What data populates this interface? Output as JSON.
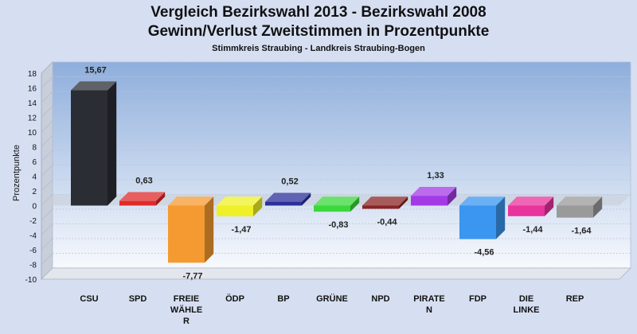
{
  "header": {
    "title_line1": "Vergleich Bezirkswahl 2013 - Bezirkswahl 2008",
    "title_line2": "Gewinn/Verlust Zweitstimmen in Prozentpunkte",
    "subtitle": "Stimmkreis Straubing - Landkreis Straubing-Bogen"
  },
  "chart_data": {
    "type": "bar",
    "title": "Vergleich Bezirkswahl 2013 - Bezirkswahl 2008",
    "subtitle": "Gewinn/Verlust Zweitstimmen in Prozentpunkte",
    "ylabel": "Prozentpunkte",
    "xlabel": "",
    "ylim": [
      -10,
      18
    ],
    "yticks": [
      18,
      16,
      14,
      12,
      10,
      8,
      6,
      4,
      2,
      0,
      -2,
      -4,
      -6,
      -8,
      -10
    ],
    "grid": true,
    "categories": [
      "CSU",
      "SPD",
      "FREIE WÄHLER",
      "ÖDP",
      "BP",
      "GRÜNE",
      "NPD",
      "PIRATEN",
      "FDP",
      "DIE LINKE",
      "REP"
    ],
    "category_labels": [
      [
        "CSU"
      ],
      [
        "SPD"
      ],
      [
        "FREIE",
        "WÄHLE",
        "R"
      ],
      [
        "ÖDP"
      ],
      [
        "BP"
      ],
      [
        "GRÜNE"
      ],
      [
        "NPD"
      ],
      [
        "PIRATE",
        "N"
      ],
      [
        "FDP"
      ],
      [
        "DIE",
        "LINKE"
      ],
      [
        "REP"
      ]
    ],
    "values": [
      15.67,
      0.63,
      -7.77,
      -1.47,
      0.52,
      -0.83,
      -0.44,
      1.33,
      -4.56,
      -1.44,
      -1.64
    ],
    "value_labels": [
      "15,67",
      "0,63",
      "-7,77",
      "-1,47",
      "0,52",
      "-0,83",
      "-0,44",
      "1,33",
      "-4,56",
      "-1,44",
      "-1,64"
    ],
    "colors": [
      "#2a2d33",
      "#e02a2a",
      "#f59a30",
      "#f0f028",
      "#2b2f9a",
      "#3ad83a",
      "#8a2424",
      "#a43ae6",
      "#3a96f0",
      "#e8349c",
      "#9a9a9a"
    ]
  }
}
